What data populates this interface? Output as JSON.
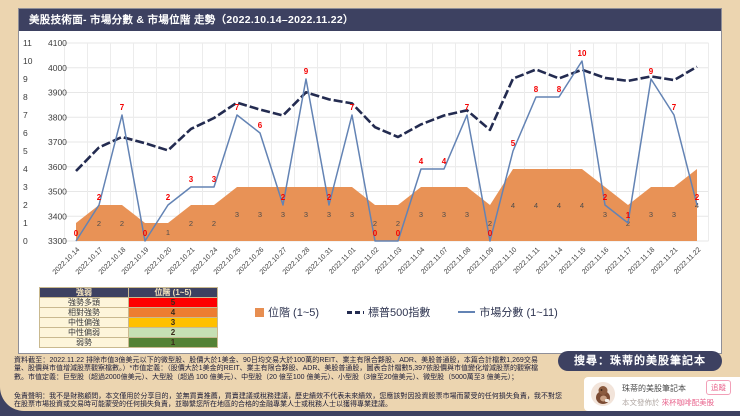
{
  "page": {
    "title": "美股技術面- 市場分數 & 市場位階 走勢（2022.10.14–2022.11.22）",
    "colors": {
      "background_tan": "#ecd5b0",
      "navy": "#3d4161",
      "area_orange": "#e78e51",
      "sp500_line_navy": "#232b50",
      "score_line_blue": "#6383b4",
      "score_label_red": "#f40000",
      "tier_label_gray": "#4c4c4c",
      "accent_pink": "#e8638c"
    }
  },
  "chart_data": {
    "type": "combo",
    "title": "美股技術面- 市場分數 & 市場位階 走勢（2022.10.14–2022.11.22）",
    "x": [
      "2022.10.14",
      "2022.10.17",
      "2022.10.18",
      "2022.10.19",
      "2022.10.20",
      "2022.10.21",
      "2022.10.24",
      "2022.10.25",
      "2022.10.26",
      "2022.10.27",
      "2022.10.28",
      "2022.10.31",
      "2022.11.01",
      "2022.11.02",
      "2022.11.03",
      "2022.11.04",
      "2022.11.07",
      "2022.11.08",
      "2022.11.09",
      "2022.11.10",
      "2022.11.11",
      "2022.11.14",
      "2022.11.15",
      "2022.11.16",
      "2022.11.17",
      "2022.11.18",
      "2022.11.21",
      "2022.11.22"
    ],
    "series": [
      {
        "name": "位階 (1~5)",
        "type": "area",
        "axis": "score",
        "color": "#e78e51",
        "values": [
          1,
          2,
          2,
          1,
          1,
          2,
          2,
          3,
          3,
          3,
          3,
          3,
          3,
          2,
          2,
          3,
          3,
          3,
          2,
          4,
          4,
          4,
          4,
          3,
          2,
          3,
          3,
          4
        ]
      },
      {
        "name": "標普500指數",
        "type": "line",
        "style": "dashed",
        "axis": "price",
        "color": "#232b50",
        "values": [
          3583,
          3678,
          3720,
          3695,
          3666,
          3753,
          3797,
          3859,
          3831,
          3807,
          3901,
          3872,
          3856,
          3760,
          3720,
          3771,
          3807,
          3828,
          3749,
          3956,
          3993,
          3957,
          3992,
          3959,
          3947,
          3965,
          3950,
          4004
        ]
      },
      {
        "name": "市場分數 (1~11)",
        "type": "line",
        "axis": "score",
        "color": "#6383b4",
        "values": [
          0,
          2,
          7,
          0,
          2,
          3,
          3,
          7,
          6,
          2,
          9,
          2,
          7,
          0,
          0,
          4,
          4,
          7,
          0,
          5,
          8,
          8,
          10,
          2,
          1,
          9,
          7,
          2
        ]
      }
    ],
    "axes": {
      "score": {
        "side": "outer-left",
        "min": 0,
        "max": 11,
        "ticks": [
          0,
          1,
          2,
          3,
          4,
          5,
          6,
          7,
          8,
          9,
          10,
          11
        ]
      },
      "price": {
        "side": "inner-left",
        "min": 3300,
        "max": 4100,
        "step": 100
      }
    },
    "grid": true,
    "legend_position": "bottom"
  },
  "strength_table": {
    "headers": [
      "強弱",
      "位階 (1~5)"
    ],
    "rows": [
      {
        "label": "強勢多頭",
        "value": "5",
        "color": "#fe0000"
      },
      {
        "label": "相對強勢",
        "value": "4",
        "color": "#ed7d31"
      },
      {
        "label": "中性偏強",
        "value": "3",
        "color": "#ffc000"
      },
      {
        "label": "中性偏弱",
        "value": "2",
        "color": "#c6e0b4"
      },
      {
        "label": "弱勢",
        "value": "1",
        "color": "#548235"
      }
    ]
  },
  "footer": {
    "disclaimer1": "資料截至：2022.11.22 排除市值3億美元以下的微型股、股價大於1美金、90日均交易大於100萬的REIT、業主有限合夥股、ADR、美股普通股，本篇合計檔數1,269交易量、股價與市值增減股票觀察檔數。）*市值定義：（股價大於1美金的REIT、業主有限合夥股、ADR、美股普通股，圖表合計檔數5,397依股價與市值變化增減股票的觀察檔數。市值定義：巨型股（超過2000億美元）、大型股（超過 100 億美元）、中型股（20 億至100 億美元）、小型股（3億至20億美元）、微型股（5000萬至3 億美元）；",
    "disclaimer2": "免責聲明：我不是財務顧問，本文僅用於分享目的，並無買賣推薦，買賣建議或稅務建議，歷史績效不代表未來績效，您應該對因投資股票市場而蒙受的任何損失負責，我不對您在股票市場投資或交易時可能蒙受的任何損失負責，並聯繫您所在地區的合格的金融專業人士或稅務人士以獲得專業建議。"
  },
  "promo": {
    "search_label": "搜尋：珠蒂的美股筆記本",
    "profile_name": "珠蒂的美股筆記本",
    "follow_label": "追蹤",
    "published_prefix": "本文發佈於 ",
    "published_channel": "來杯咖啡配美股"
  }
}
